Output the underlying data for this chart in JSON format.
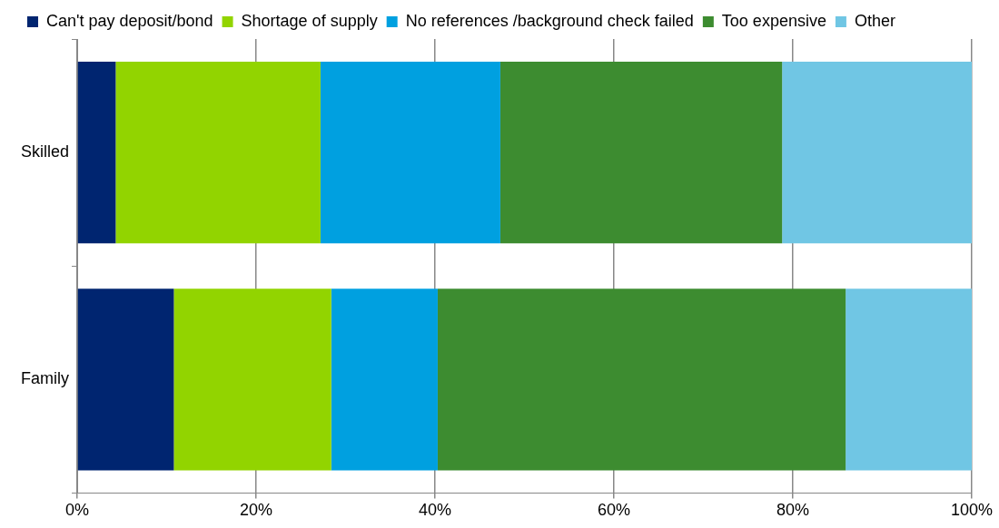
{
  "chart_data": {
    "type": "bar",
    "orientation": "horizontal",
    "stacked": true,
    "categories": [
      "Skilled",
      "Family"
    ],
    "series": [
      {
        "name": "Can't pay deposit/bond",
        "color": "#002570",
        "values": [
          4.3,
          10.8
        ]
      },
      {
        "name": "Shortage of supply",
        "color": "#92d400",
        "values": [
          22.9,
          17.6
        ]
      },
      {
        "name": "No references /background check failed",
        "color": "#00a0e0",
        "values": [
          20.1,
          11.9
        ]
      },
      {
        "name": "Too expensive",
        "color": "#3d8c30",
        "values": [
          31.5,
          45.6
        ]
      },
      {
        "name": "Other",
        "color": "#70c6e4",
        "values": [
          21.2,
          14.1
        ]
      }
    ],
    "xlim": [
      0,
      100
    ],
    "xticks": [
      {
        "value": 0,
        "label": "0%"
      },
      {
        "value": 20,
        "label": "20%"
      },
      {
        "value": 40,
        "label": "40%"
      },
      {
        "value": 60,
        "label": "60%"
      },
      {
        "value": 80,
        "label": "80%"
      },
      {
        "value": 100,
        "label": "100%"
      }
    ],
    "grid": "x",
    "legend": "top"
  }
}
